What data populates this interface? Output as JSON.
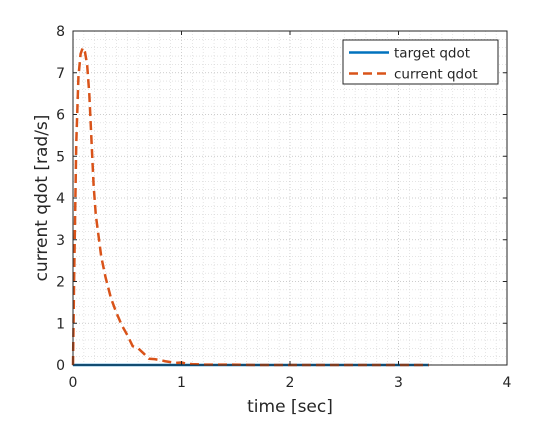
{
  "chart_data": {
    "type": "line",
    "xlabel": "time [sec]",
    "ylabel": "current qdot [rad/s]",
    "xlim": [
      0,
      4
    ],
    "ylim": [
      0,
      8
    ],
    "xticks": [
      0,
      1,
      2,
      3,
      4
    ],
    "yticks": [
      0,
      1,
      2,
      3,
      4,
      5,
      6,
      7,
      8
    ],
    "grid": "minor dotted",
    "legend": "top-right",
    "series": [
      {
        "name": "target qdot",
        "color": "#0072BD",
        "style": "solid",
        "x": [
          0,
          3.28
        ],
        "y": [
          0,
          0
        ]
      },
      {
        "name": "current qdot",
        "color": "#D95319",
        "style": "dashed",
        "x": [
          0,
          0.01,
          0.03,
          0.05,
          0.07,
          0.09,
          0.11,
          0.13,
          0.15,
          0.17,
          0.19,
          0.21,
          0.23,
          0.26,
          0.3,
          0.35,
          0.4,
          0.45,
          0.5,
          0.55,
          0.6,
          0.65,
          0.7,
          0.75,
          0.8,
          0.85,
          0.9,
          0.95,
          1.0,
          1.05,
          1.1,
          1.2,
          1.4,
          1.7,
          2.0,
          2.5,
          3.0,
          3.28
        ],
        "y": [
          0,
          2.0,
          5.3,
          6.9,
          7.45,
          7.6,
          7.5,
          7.2,
          6.5,
          5.4,
          4.3,
          3.6,
          3.2,
          2.6,
          2.1,
          1.6,
          1.25,
          0.95,
          0.72,
          0.45,
          0.4,
          0.28,
          0.15,
          0.14,
          0.12,
          0.09,
          0.07,
          0.05,
          0.06,
          0.03,
          0.02,
          0.01,
          0.01,
          0,
          0,
          0,
          0,
          0
        ]
      }
    ]
  }
}
